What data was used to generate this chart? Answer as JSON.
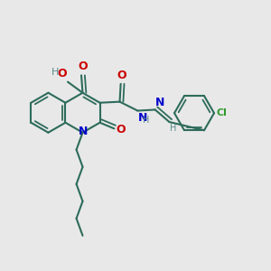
{
  "background_color": "#e8e8e8",
  "bond_color": "#2d6b5a",
  "atom_colors": {
    "O": "#cc0000",
    "N": "#0000cc",
    "Cl": "#2d9b2d",
    "H": "#5a8a8a"
  },
  "figsize": [
    3.0,
    3.0
  ],
  "dpi": 100,
  "lw": 1.5,
  "lw2": 1.3
}
